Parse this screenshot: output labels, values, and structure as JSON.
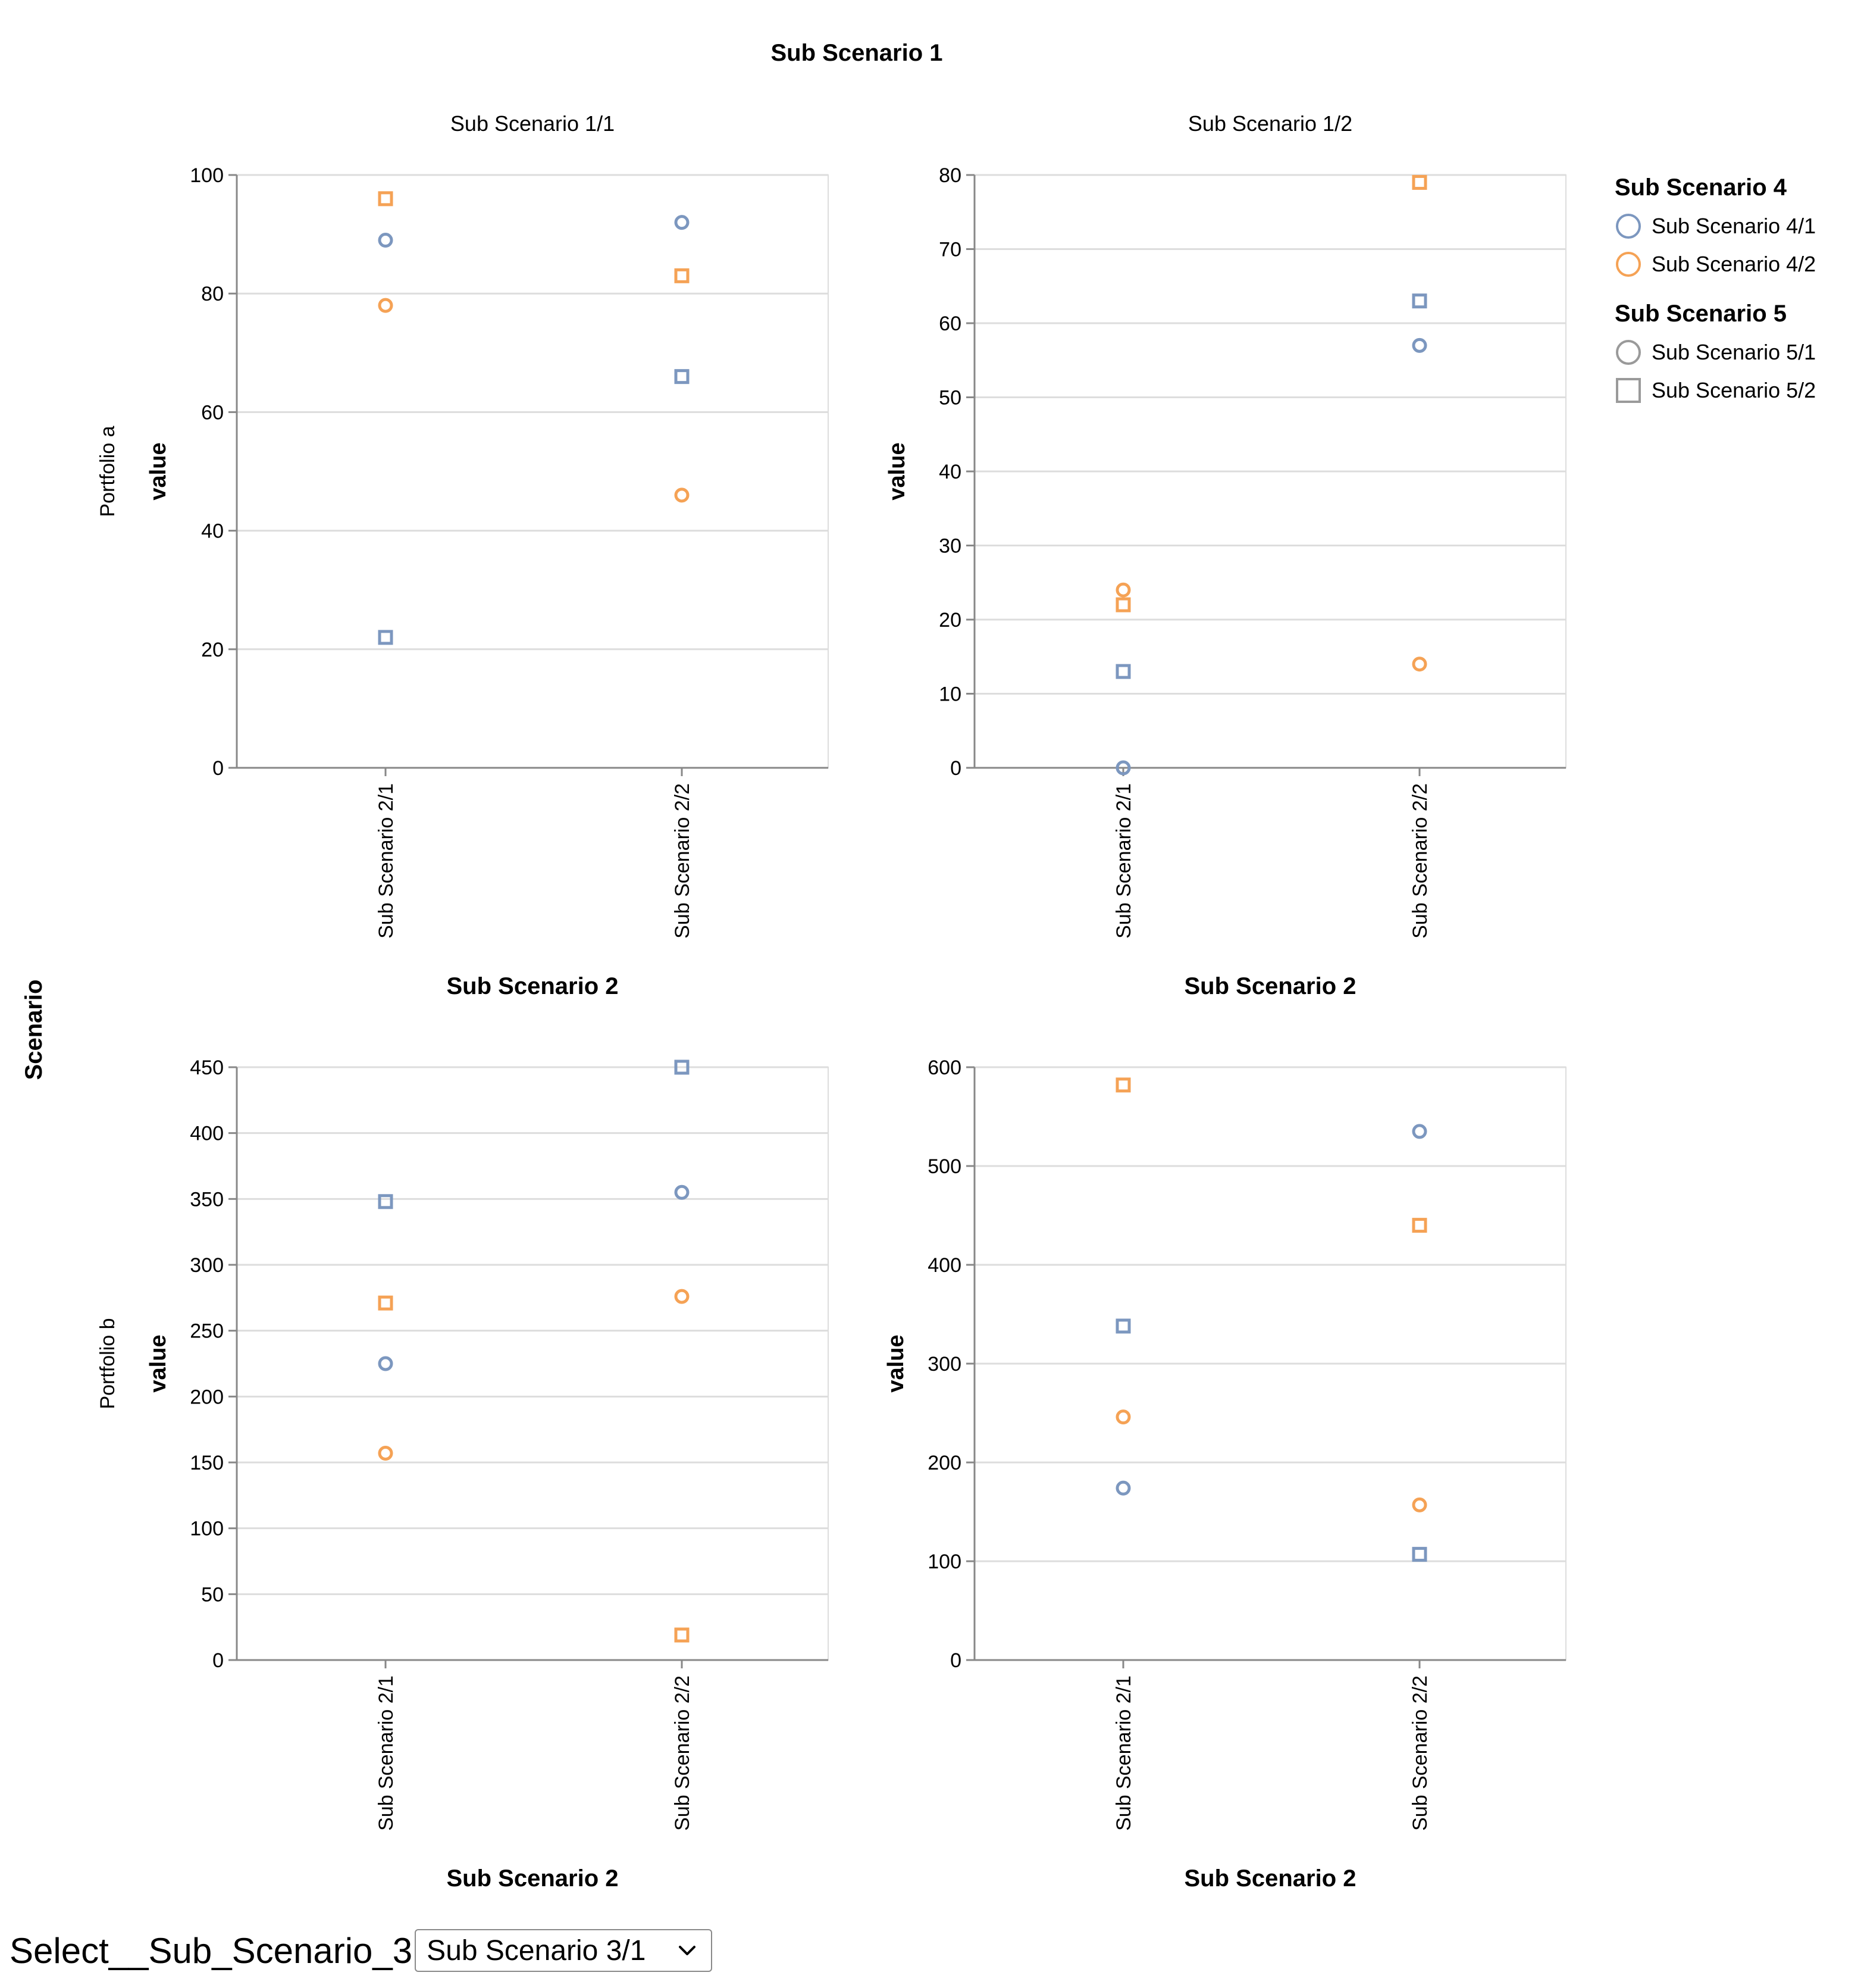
{
  "chart_data": {
    "type": "scatter",
    "title": "Sub Scenario 1",
    "row_title": "Scenario",
    "xlabel": "Sub Scenario 2",
    "ylabel": "value",
    "categories": [
      "Sub Scenario 2/1",
      "Sub Scenario 2/2"
    ],
    "legend": {
      "color_title": "Sub Scenario 4",
      "color_items": [
        {
          "label": "Sub Scenario 4/1",
          "color": "#7c97bf"
        },
        {
          "label": "Sub Scenario 4/2",
          "color": "#f5a255"
        }
      ],
      "shape_title": "Sub Scenario 5",
      "shape_items": [
        {
          "label": "Sub Scenario 5/1",
          "shape": "circle"
        },
        {
          "label": "Sub Scenario 5/2",
          "shape": "square"
        }
      ],
      "position": "top-right"
    },
    "panels": [
      {
        "col": "Sub Scenario 1/1",
        "row": "Portfolio a",
        "ylim": [
          0,
          100
        ],
        "ticks": [
          0,
          20,
          40,
          60,
          80,
          100
        ],
        "points": [
          {
            "x": "Sub Scenario 2/1",
            "color": "Sub Scenario 4/1",
            "shape": "Sub Scenario 5/1",
            "value": 89
          },
          {
            "x": "Sub Scenario 2/1",
            "color": "Sub Scenario 4/2",
            "shape": "Sub Scenario 5/1",
            "value": 78
          },
          {
            "x": "Sub Scenario 2/1",
            "color": "Sub Scenario 4/1",
            "shape": "Sub Scenario 5/2",
            "value": 22
          },
          {
            "x": "Sub Scenario 2/1",
            "color": "Sub Scenario 4/2",
            "shape": "Sub Scenario 5/2",
            "value": 96
          },
          {
            "x": "Sub Scenario 2/2",
            "color": "Sub Scenario 4/1",
            "shape": "Sub Scenario 5/1",
            "value": 92
          },
          {
            "x": "Sub Scenario 2/2",
            "color": "Sub Scenario 4/2",
            "shape": "Sub Scenario 5/1",
            "value": 46
          },
          {
            "x": "Sub Scenario 2/2",
            "color": "Sub Scenario 4/1",
            "shape": "Sub Scenario 5/2",
            "value": 66
          },
          {
            "x": "Sub Scenario 2/2",
            "color": "Sub Scenario 4/2",
            "shape": "Sub Scenario 5/2",
            "value": 83
          }
        ]
      },
      {
        "col": "Sub Scenario 1/2",
        "row": "Portfolio a",
        "ylim": [
          0,
          80
        ],
        "ticks": [
          0,
          10,
          20,
          30,
          40,
          50,
          60,
          70,
          80
        ],
        "points": [
          {
            "x": "Sub Scenario 2/1",
            "color": "Sub Scenario 4/1",
            "shape": "Sub Scenario 5/1",
            "value": 0
          },
          {
            "x": "Sub Scenario 2/1",
            "color": "Sub Scenario 4/2",
            "shape": "Sub Scenario 5/1",
            "value": 24
          },
          {
            "x": "Sub Scenario 2/1",
            "color": "Sub Scenario 4/1",
            "shape": "Sub Scenario 5/2",
            "value": 13
          },
          {
            "x": "Sub Scenario 2/1",
            "color": "Sub Scenario 4/2",
            "shape": "Sub Scenario 5/2",
            "value": 22
          },
          {
            "x": "Sub Scenario 2/2",
            "color": "Sub Scenario 4/1",
            "shape": "Sub Scenario 5/1",
            "value": 57
          },
          {
            "x": "Sub Scenario 2/2",
            "color": "Sub Scenario 4/2",
            "shape": "Sub Scenario 5/1",
            "value": 14
          },
          {
            "x": "Sub Scenario 2/2",
            "color": "Sub Scenario 4/1",
            "shape": "Sub Scenario 5/2",
            "value": 63
          },
          {
            "x": "Sub Scenario 2/2",
            "color": "Sub Scenario 4/2",
            "shape": "Sub Scenario 5/2",
            "value": 79
          }
        ]
      },
      {
        "col": "Sub Scenario 1/1",
        "row": "Portfolio b",
        "ylim": [
          0,
          450
        ],
        "ticks": [
          0,
          50,
          100,
          150,
          200,
          250,
          300,
          350,
          400,
          450
        ],
        "points": [
          {
            "x": "Sub Scenario 2/1",
            "color": "Sub Scenario 4/1",
            "shape": "Sub Scenario 5/1",
            "value": 225
          },
          {
            "x": "Sub Scenario 2/1",
            "color": "Sub Scenario 4/2",
            "shape": "Sub Scenario 5/1",
            "value": 157
          },
          {
            "x": "Sub Scenario 2/1",
            "color": "Sub Scenario 4/1",
            "shape": "Sub Scenario 5/2",
            "value": 348
          },
          {
            "x": "Sub Scenario 2/1",
            "color": "Sub Scenario 4/2",
            "shape": "Sub Scenario 5/2",
            "value": 271
          },
          {
            "x": "Sub Scenario 2/2",
            "color": "Sub Scenario 4/1",
            "shape": "Sub Scenario 5/1",
            "value": 355
          },
          {
            "x": "Sub Scenario 2/2",
            "color": "Sub Scenario 4/2",
            "shape": "Sub Scenario 5/1",
            "value": 276
          },
          {
            "x": "Sub Scenario 2/2",
            "color": "Sub Scenario 4/1",
            "shape": "Sub Scenario 5/2",
            "value": 450
          },
          {
            "x": "Sub Scenario 2/2",
            "color": "Sub Scenario 4/2",
            "shape": "Sub Scenario 5/2",
            "value": 19
          }
        ]
      },
      {
        "col": "Sub Scenario 1/2",
        "row": "Portfolio b",
        "ylim": [
          0,
          600
        ],
        "ticks": [
          0,
          100,
          200,
          300,
          400,
          500,
          600
        ],
        "points": [
          {
            "x": "Sub Scenario 2/1",
            "color": "Sub Scenario 4/1",
            "shape": "Sub Scenario 5/1",
            "value": 174
          },
          {
            "x": "Sub Scenario 2/1",
            "color": "Sub Scenario 4/2",
            "shape": "Sub Scenario 5/1",
            "value": 246
          },
          {
            "x": "Sub Scenario 2/1",
            "color": "Sub Scenario 4/1",
            "shape": "Sub Scenario 5/2",
            "value": 338
          },
          {
            "x": "Sub Scenario 2/1",
            "color": "Sub Scenario 4/2",
            "shape": "Sub Scenario 5/2",
            "value": 582
          },
          {
            "x": "Sub Scenario 2/2",
            "color": "Sub Scenario 4/1",
            "shape": "Sub Scenario 5/1",
            "value": 535
          },
          {
            "x": "Sub Scenario 2/2",
            "color": "Sub Scenario 4/2",
            "shape": "Sub Scenario 5/1",
            "value": 157
          },
          {
            "x": "Sub Scenario 2/2",
            "color": "Sub Scenario 4/1",
            "shape": "Sub Scenario 5/2",
            "value": 107
          },
          {
            "x": "Sub Scenario 2/2",
            "color": "Sub Scenario 4/2",
            "shape": "Sub Scenario 5/2",
            "value": 440
          }
        ]
      }
    ]
  },
  "controls": {
    "select_label": "Select__Sub_Scenario_3",
    "select_value": "Sub Scenario 3/1"
  }
}
